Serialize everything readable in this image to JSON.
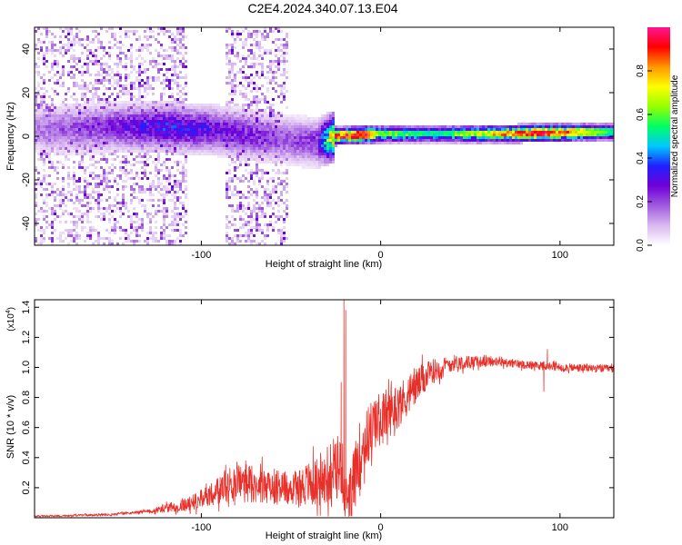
{
  "figure": {
    "title": "C2E4.2024.340.07.13.E04"
  },
  "chart_data": [
    {
      "type": "heatmap",
      "xlabel": "Height of straight line (km)",
      "ylabel": "Frequency (Hz)",
      "xlim": [
        -193,
        130
      ],
      "ylim": [
        -50,
        50
      ],
      "xticks": [
        {
          "v": -100,
          "label": "-100"
        },
        {
          "v": 0,
          "label": "0"
        },
        {
          "v": 100,
          "label": "100"
        }
      ],
      "yticks": [
        {
          "v": -40,
          "label": "-40"
        },
        {
          "v": -20,
          "label": "-20"
        },
        {
          "v": 0,
          "label": "0"
        },
        {
          "v": 20,
          "label": "20"
        },
        {
          "v": 40,
          "label": "40"
        }
      ],
      "colorbar": {
        "label": "Normalized spectral amplitude",
        "range": [
          0,
          1
        ],
        "ticks": [
          {
            "v": 0.0,
            "label": "0.0"
          },
          {
            "v": 0.2,
            "label": "0.2"
          },
          {
            "v": 0.4,
            "label": "0.4"
          },
          {
            "v": 0.6,
            "label": "0.6"
          },
          {
            "v": 0.8,
            "label": "0.8"
          }
        ],
        "colormap": [
          "#ffffff",
          "#d9b8f0",
          "#a05ae0",
          "#7000d8",
          "#2020ff",
          "#00c8ff",
          "#00ff64",
          "#96ff00",
          "#ffff00",
          "#ff9600",
          "#ff0000",
          "#ff1493"
        ]
      },
      "features": {
        "noise_region_km": [
          -193,
          -52
        ],
        "gap_km": [
          -108,
          -86
        ],
        "band_center_hz": [
          {
            "x": -193,
            "y": 3
          },
          {
            "x": -150,
            "y": 4
          },
          {
            "x": -120,
            "y": 4
          },
          {
            "x": -95,
            "y": 3
          },
          {
            "x": -50,
            "y": -2
          },
          {
            "x": -35,
            "y": -3
          },
          {
            "x": -25,
            "y": 0
          },
          {
            "x": 0,
            "y": 1
          },
          {
            "x": 60,
            "y": 1
          },
          {
            "x": 130,
            "y": 2
          }
        ],
        "band_strength": [
          {
            "x": -193,
            "v": 0.15
          },
          {
            "x": -150,
            "v": 0.25
          },
          {
            "x": -120,
            "v": 0.35
          },
          {
            "x": -95,
            "v": 0.3
          },
          {
            "x": -50,
            "v": 0.2
          },
          {
            "x": -35,
            "v": 0.25
          },
          {
            "x": -25,
            "v": 0.85
          },
          {
            "x": -10,
            "v": 0.9
          },
          {
            "x": 0,
            "v": 0.6
          },
          {
            "x": 30,
            "v": 0.5
          },
          {
            "x": 60,
            "v": 0.7
          },
          {
            "x": 90,
            "v": 0.95
          },
          {
            "x": 130,
            "v": 0.5
          }
        ]
      }
    },
    {
      "type": "line",
      "xlabel": "Height of straight line (km)",
      "ylabel": "SNR (10 * v/v)",
      "y_multiplier": "(x10",
      "y_multiplier_exp": "4",
      "y_multiplier_close": ")",
      "xlim": [
        -193,
        130
      ],
      "ylim": [
        0,
        1.45
      ],
      "xticks": [
        {
          "v": -100,
          "label": "-100"
        },
        {
          "v": 0,
          "label": "0"
        },
        {
          "v": 100,
          "label": "100"
        }
      ],
      "yticks": [
        {
          "v": 0.2,
          "label": "0.2"
        },
        {
          "v": 0.4,
          "label": "0.4"
        },
        {
          "v": 0.6,
          "label": "0.6"
        },
        {
          "v": 0.8,
          "label": "0.8"
        },
        {
          "v": 1.0,
          "label": "1.0"
        },
        {
          "v": 1.2,
          "label": "1.2"
        },
        {
          "v": 1.4,
          "label": "1.4"
        }
      ],
      "grid": false,
      "series": [
        {
          "color": "#e8302a",
          "envelope": [
            {
              "x": -193,
              "y": 0.01
            },
            {
              "x": -150,
              "y": 0.02
            },
            {
              "x": -125,
              "y": 0.05
            },
            {
              "x": -105,
              "y": 0.1
            },
            {
              "x": -90,
              "y": 0.18
            },
            {
              "x": -80,
              "y": 0.26
            },
            {
              "x": -70,
              "y": 0.22
            },
            {
              "x": -50,
              "y": 0.2
            },
            {
              "x": -30,
              "y": 0.25
            },
            {
              "x": -22,
              "y": 0.35
            },
            {
              "x": -18,
              "y": 0.05
            },
            {
              "x": -12,
              "y": 0.42
            },
            {
              "x": -5,
              "y": 0.6
            },
            {
              "x": 0,
              "y": 0.66
            },
            {
              "x": 10,
              "y": 0.75
            },
            {
              "x": 20,
              "y": 0.88
            },
            {
              "x": 30,
              "y": 0.98
            },
            {
              "x": 40,
              "y": 1.03
            },
            {
              "x": 60,
              "y": 1.04
            },
            {
              "x": 80,
              "y": 1.02
            },
            {
              "x": 100,
              "y": 1.0
            },
            {
              "x": 130,
              "y": 0.99
            }
          ],
          "noise_amplitude": [
            {
              "x": -193,
              "v": 0.005
            },
            {
              "x": -130,
              "v": 0.01
            },
            {
              "x": -100,
              "v": 0.06
            },
            {
              "x": -80,
              "v": 0.12
            },
            {
              "x": -50,
              "v": 0.12
            },
            {
              "x": -30,
              "v": 0.18
            },
            {
              "x": -15,
              "v": 0.22
            },
            {
              "x": 0,
              "v": 0.18
            },
            {
              "x": 20,
              "v": 0.12
            },
            {
              "x": 35,
              "v": 0.06
            },
            {
              "x": 60,
              "v": 0.03
            },
            {
              "x": 130,
              "v": 0.025
            }
          ],
          "peaks": [
            {
              "x": -20.5,
              "y": 1.47
            },
            {
              "x": -19.5,
              "y": 1.38
            },
            {
              "x": -22,
              "y": 0.9
            },
            {
              "x": 93,
              "y": 1.12
            },
            {
              "x": 91,
              "y": 0.84
            }
          ]
        }
      ]
    }
  ]
}
